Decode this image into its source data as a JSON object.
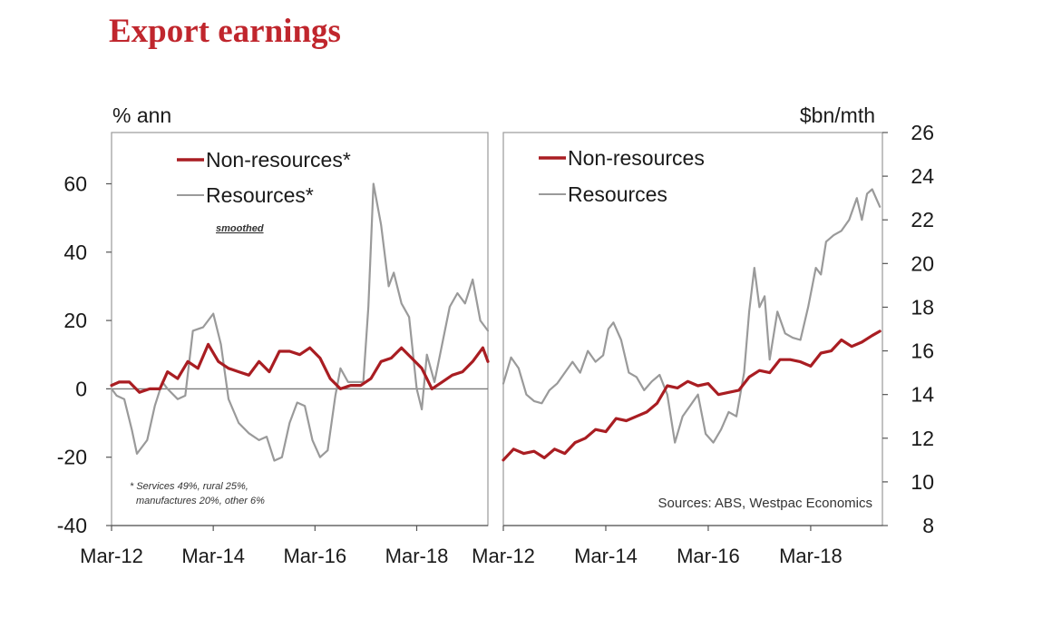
{
  "title": "Export earnings",
  "colors": {
    "title": "#c0262d",
    "non_resources": "#a91d22",
    "resources": "#9a9a9a"
  },
  "chart_data": [
    {
      "type": "line",
      "ylabel": "% ann",
      "ylim": [
        -40,
        75
      ],
      "yticks": [
        60,
        40,
        20,
        0,
        -20,
        -40
      ],
      "xlim": [
        2012.0,
        2019.4
      ],
      "xticks": [
        {
          "label": "Mar-12",
          "x": 2012.0
        },
        {
          "label": "Mar-14",
          "x": 2014.0
        },
        {
          "label": "Mar-16",
          "x": 2016.0
        },
        {
          "label": "Mar-18",
          "x": 2018.0
        }
      ],
      "zero_line": true,
      "legend": {
        "placement": "top-left",
        "entries": [
          "Non-resources*",
          "Resources*"
        ],
        "subnote": "smoothed"
      },
      "footnote": [
        "* Services 49%, rural 25%,",
        "manufactures 20%, other 6%"
      ],
      "series": [
        {
          "name": "Non-resources*",
          "color": "#a91d22",
          "points": [
            [
              2012.0,
              1
            ],
            [
              2012.15,
              2
            ],
            [
              2012.35,
              2
            ],
            [
              2012.55,
              -1
            ],
            [
              2012.75,
              0
            ],
            [
              2012.95,
              0
            ],
            [
              2013.1,
              5
            ],
            [
              2013.3,
              3
            ],
            [
              2013.5,
              8
            ],
            [
              2013.7,
              6
            ],
            [
              2013.9,
              13
            ],
            [
              2014.1,
              8
            ],
            [
              2014.3,
              6
            ],
            [
              2014.5,
              5
            ],
            [
              2014.7,
              4
            ],
            [
              2014.9,
              8
            ],
            [
              2015.1,
              5
            ],
            [
              2015.3,
              11
            ],
            [
              2015.5,
              11
            ],
            [
              2015.7,
              10
            ],
            [
              2015.9,
              12
            ],
            [
              2016.1,
              9
            ],
            [
              2016.3,
              3
            ],
            [
              2016.5,
              0
            ],
            [
              2016.7,
              1
            ],
            [
              2016.9,
              1
            ],
            [
              2017.1,
              3
            ],
            [
              2017.3,
              8
            ],
            [
              2017.5,
              9
            ],
            [
              2017.7,
              12
            ],
            [
              2017.9,
              9
            ],
            [
              2018.1,
              6
            ],
            [
              2018.3,
              0
            ],
            [
              2018.5,
              2
            ],
            [
              2018.7,
              4
            ],
            [
              2018.9,
              5
            ],
            [
              2019.1,
              8
            ],
            [
              2019.3,
              12
            ],
            [
              2019.4,
              8
            ]
          ]
        },
        {
          "name": "Resources*",
          "color": "#9a9a9a",
          "points": [
            [
              2012.0,
              0
            ],
            [
              2012.1,
              -2
            ],
            [
              2012.25,
              -3
            ],
            [
              2012.4,
              -12
            ],
            [
              2012.5,
              -19
            ],
            [
              2012.7,
              -15
            ],
            [
              2012.85,
              -5
            ],
            [
              2013.0,
              2
            ],
            [
              2013.1,
              0
            ],
            [
              2013.3,
              -3
            ],
            [
              2013.45,
              -2
            ],
            [
              2013.6,
              17
            ],
            [
              2013.8,
              18
            ],
            [
              2014.0,
              22
            ],
            [
              2014.15,
              13
            ],
            [
              2014.3,
              -3
            ],
            [
              2014.5,
              -10
            ],
            [
              2014.7,
              -13
            ],
            [
              2014.9,
              -15
            ],
            [
              2015.05,
              -14
            ],
            [
              2015.2,
              -21
            ],
            [
              2015.35,
              -20
            ],
            [
              2015.5,
              -10
            ],
            [
              2015.65,
              -4
            ],
            [
              2015.8,
              -5
            ],
            [
              2015.95,
              -15
            ],
            [
              2016.1,
              -20
            ],
            [
              2016.25,
              -18
            ],
            [
              2016.4,
              -2
            ],
            [
              2016.5,
              6
            ],
            [
              2016.65,
              2
            ],
            [
              2016.8,
              2
            ],
            [
              2016.95,
              2
            ],
            [
              2017.05,
              24
            ],
            [
              2017.15,
              60
            ],
            [
              2017.3,
              48
            ],
            [
              2017.45,
              30
            ],
            [
              2017.55,
              34
            ],
            [
              2017.7,
              25
            ],
            [
              2017.85,
              21
            ],
            [
              2018.0,
              0
            ],
            [
              2018.1,
              -6
            ],
            [
              2018.2,
              10
            ],
            [
              2018.35,
              2
            ],
            [
              2018.5,
              13
            ],
            [
              2018.65,
              24
            ],
            [
              2018.8,
              28
            ],
            [
              2018.95,
              25
            ],
            [
              2019.1,
              32
            ],
            [
              2019.25,
              20
            ],
            [
              2019.4,
              17
            ]
          ]
        }
      ]
    },
    {
      "type": "line",
      "ylabel": "$bn/mth",
      "ylim": [
        8,
        26
      ],
      "yticks": [
        26,
        24,
        22,
        20,
        18,
        16,
        14,
        12,
        10,
        8
      ],
      "xlim": [
        2012.0,
        2019.4
      ],
      "xticks": [
        {
          "label": "Mar-12",
          "x": 2012.0
        },
        {
          "label": "Mar-14",
          "x": 2014.0
        },
        {
          "label": "Mar-16",
          "x": 2016.0
        },
        {
          "label": "Mar-18",
          "x": 2018.0
        }
      ],
      "zero_line": false,
      "legend": {
        "placement": "top-left",
        "entries": [
          "Non-resources",
          "Resources"
        ]
      },
      "source": "Sources: ABS, Westpac Economics",
      "series": [
        {
          "name": "Non-resources",
          "color": "#a91d22",
          "points": [
            [
              2012.0,
              11.0
            ],
            [
              2012.2,
              11.5
            ],
            [
              2012.4,
              11.3
            ],
            [
              2012.6,
              11.4
            ],
            [
              2012.8,
              11.1
            ],
            [
              2013.0,
              11.5
            ],
            [
              2013.2,
              11.3
            ],
            [
              2013.4,
              11.8
            ],
            [
              2013.6,
              12.0
            ],
            [
              2013.8,
              12.4
            ],
            [
              2014.0,
              12.3
            ],
            [
              2014.2,
              12.9
            ],
            [
              2014.4,
              12.8
            ],
            [
              2014.6,
              13.0
            ],
            [
              2014.8,
              13.2
            ],
            [
              2015.0,
              13.6
            ],
            [
              2015.2,
              14.4
            ],
            [
              2015.4,
              14.3
            ],
            [
              2015.6,
              14.6
            ],
            [
              2015.8,
              14.4
            ],
            [
              2016.0,
              14.5
            ],
            [
              2016.2,
              14.0
            ],
            [
              2016.4,
              14.1
            ],
            [
              2016.6,
              14.2
            ],
            [
              2016.8,
              14.8
            ],
            [
              2017.0,
              15.1
            ],
            [
              2017.2,
              15.0
            ],
            [
              2017.4,
              15.6
            ],
            [
              2017.6,
              15.6
            ],
            [
              2017.8,
              15.5
            ],
            [
              2018.0,
              15.3
            ],
            [
              2018.2,
              15.9
            ],
            [
              2018.4,
              16.0
            ],
            [
              2018.6,
              16.5
            ],
            [
              2018.8,
              16.2
            ],
            [
              2019.0,
              16.4
            ],
            [
              2019.2,
              16.7
            ],
            [
              2019.35,
              16.9
            ]
          ]
        },
        {
          "name": "Resources",
          "color": "#9a9a9a",
          "points": [
            [
              2012.0,
              14.5
            ],
            [
              2012.15,
              15.7
            ],
            [
              2012.3,
              15.2
            ],
            [
              2012.45,
              14.0
            ],
            [
              2012.6,
              13.7
            ],
            [
              2012.75,
              13.6
            ],
            [
              2012.9,
              14.2
            ],
            [
              2013.05,
              14.5
            ],
            [
              2013.2,
              15.0
            ],
            [
              2013.35,
              15.5
            ],
            [
              2013.5,
              15.0
            ],
            [
              2013.65,
              16.0
            ],
            [
              2013.8,
              15.5
            ],
            [
              2013.95,
              15.8
            ],
            [
              2014.05,
              17.0
            ],
            [
              2014.15,
              17.3
            ],
            [
              2014.3,
              16.5
            ],
            [
              2014.45,
              15.0
            ],
            [
              2014.6,
              14.8
            ],
            [
              2014.75,
              14.2
            ],
            [
              2014.9,
              14.6
            ],
            [
              2015.05,
              14.9
            ],
            [
              2015.2,
              14.0
            ],
            [
              2015.35,
              11.8
            ],
            [
              2015.5,
              13.0
            ],
            [
              2015.65,
              13.5
            ],
            [
              2015.8,
              14.0
            ],
            [
              2015.95,
              12.2
            ],
            [
              2016.1,
              11.8
            ],
            [
              2016.25,
              12.4
            ],
            [
              2016.4,
              13.2
            ],
            [
              2016.55,
              13.0
            ],
            [
              2016.7,
              15.0
            ],
            [
              2016.8,
              17.8
            ],
            [
              2016.9,
              19.8
            ],
            [
              2017.0,
              18.0
            ],
            [
              2017.1,
              18.5
            ],
            [
              2017.2,
              15.6
            ],
            [
              2017.35,
              17.8
            ],
            [
              2017.5,
              16.8
            ],
            [
              2017.65,
              16.6
            ],
            [
              2017.8,
              16.5
            ],
            [
              2017.95,
              18.0
            ],
            [
              2018.1,
              19.8
            ],
            [
              2018.2,
              19.5
            ],
            [
              2018.3,
              21.0
            ],
            [
              2018.45,
              21.3
            ],
            [
              2018.6,
              21.5
            ],
            [
              2018.75,
              22.0
            ],
            [
              2018.9,
              23.0
            ],
            [
              2019.0,
              22.0
            ],
            [
              2019.1,
              23.2
            ],
            [
              2019.2,
              23.4
            ],
            [
              2019.35,
              22.6
            ]
          ]
        }
      ]
    }
  ]
}
